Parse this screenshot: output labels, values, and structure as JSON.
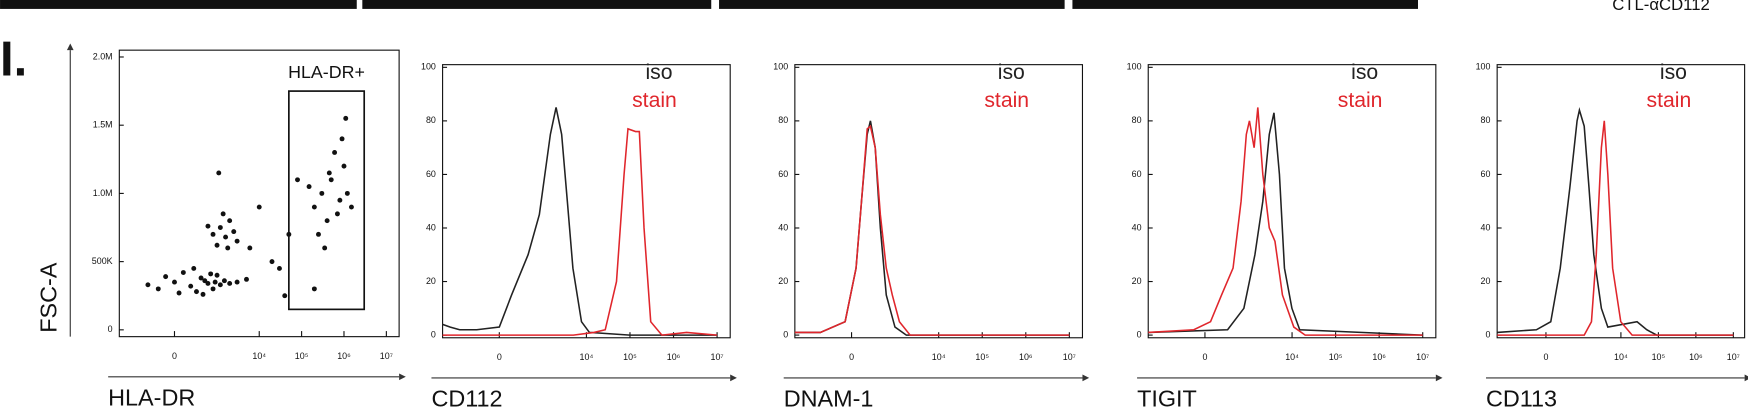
{
  "panel_label": "I.",
  "top_text": "CTL-αCD112",
  "chart_data": [
    {
      "type": "scatter",
      "x_label": "HLA-DR",
      "y_label": "FSC-A",
      "color": "#111111",
      "xlim": [
        -2000,
        20000000
      ],
      "ylim": [
        -50000,
        2050000
      ],
      "xticks": [
        0,
        {
          "value": 10000,
          "label": "10⁴"
        },
        {
          "value": 100000,
          "label": "10⁵"
        },
        {
          "value": 1000000,
          "label": "10⁶"
        },
        {
          "value": 10000000,
          "label": "10⁷"
        }
      ],
      "yticks": [
        0,
        {
          "value": 500000,
          "label": "500K"
        },
        {
          "value": 1000000,
          "label": "1.0M"
        },
        {
          "value": 1500000,
          "label": "1.5M"
        },
        {
          "value": 2000000,
          "label": "2.0M"
        }
      ],
      "gate": {
        "label": "HLA-DR+",
        "x": [
          50000,
          3000000
        ],
        "y": [
          150000,
          1750000
        ]
      },
      "x": [
        -200,
        0,
        200,
        400,
        600,
        800,
        100,
        300,
        500,
        -100,
        700,
        900,
        1200,
        1500,
        2000,
        -400,
        250,
        450,
        50,
        1000,
        3000,
        5000,
        800,
        1200,
        1600,
        2000,
        1000,
        1400,
        2500,
        600,
        1800,
        3000,
        1100,
        200000,
        300000,
        500000,
        800000,
        1000000,
        400000,
        600000,
        150000,
        700000,
        1200000,
        250000,
        900000,
        450000,
        1500000,
        350000,
        1100000,
        20000,
        50000,
        10000,
        30000,
        80000,
        6000,
        40000,
        200000
      ],
      "values": [
        300000,
        350000,
        320000,
        380000,
        340000,
        300000,
        420000,
        280000,
        360000,
        390000,
        410000,
        350000,
        330000,
        360000,
        340000,
        330000,
        450000,
        260000,
        270000,
        400000,
        350000,
        370000,
        700000,
        750000,
        680000,
        800000,
        620000,
        850000,
        720000,
        760000,
        600000,
        650000,
        1150000,
        900000,
        1000000,
        1100000,
        950000,
        1200000,
        800000,
        1300000,
        1050000,
        850000,
        1000000,
        700000,
        1400000,
        1150000,
        900000,
        600000,
        1550000,
        500000,
        700000,
        900000,
        450000,
        1100000,
        600000,
        250000,
        300000
      ]
    },
    {
      "type": "line",
      "x_label": "CD112",
      "xlim": [
        -2000,
        20000000
      ],
      "ylim": [
        -1,
        101
      ],
      "xticks": [
        0,
        {
          "value": 10000,
          "label": "10⁴"
        },
        {
          "value": 100000,
          "label": "10⁵"
        },
        {
          "value": 1000000,
          "label": "10⁶"
        },
        {
          "value": 10000000,
          "label": "10⁷"
        }
      ],
      "yticks": [
        0,
        20,
        40,
        60,
        80,
        100
      ],
      "series": [
        {
          "name": "iso",
          "color": "#222222",
          "x": [
            -2000,
            -1330,
            -800,
            -300,
            0,
            139,
            435,
            820,
            1480,
            2000,
            2700,
            3650,
            4900,
            7700,
            11700,
            100000,
            10000000
          ],
          "values": [
            4,
            3,
            2,
            2,
            3,
            15,
            30,
            45,
            75,
            85,
            75,
            50,
            25,
            5,
            1,
            0,
            0
          ]
        },
        {
          "name": "stain",
          "color": "#e0262c",
          "x": [
            -2000,
            5000,
            15000,
            27000,
            49000,
            73000,
            90000,
            134000,
            164000,
            210000,
            300000,
            540000,
            2000000,
            10000000
          ],
          "values": [
            0,
            0,
            1,
            2,
            20,
            60,
            77,
            76,
            76,
            40,
            5,
            0,
            1,
            0
          ]
        }
      ]
    },
    {
      "type": "line",
      "x_label": "DNAM-1",
      "xlim": [
        -2000,
        20000000
      ],
      "ylim": [
        -1,
        101
      ],
      "xticks": [
        0,
        {
          "value": 10000,
          "label": "10⁴"
        },
        {
          "value": 100000,
          "label": "10⁵"
        },
        {
          "value": 1000000,
          "label": "10⁶"
        },
        {
          "value": 10000000,
          "label": "10⁷"
        }
      ],
      "yticks": [
        0,
        20,
        40,
        60,
        80,
        100
      ],
      "series": [
        {
          "name": "iso",
          "color": "#222222",
          "x": [
            -2000,
            -500,
            -70,
            48,
            110,
            185,
            235,
            320,
            435,
            610,
            980,
            1800,
            10000000
          ],
          "values": [
            1,
            1,
            5,
            25,
            50,
            75,
            80,
            70,
            40,
            15,
            3,
            0,
            0
          ]
        },
        {
          "name": "stain",
          "color": "#e0262c",
          "x": [
            -2000,
            -500,
            -70,
            48,
            110,
            185,
            235,
            320,
            435,
            610,
            850,
            1250,
            2200,
            10000000
          ],
          "values": [
            1,
            1,
            5,
            25,
            50,
            77,
            78,
            70,
            45,
            25,
            15,
            5,
            0,
            0
          ]
        }
      ]
    },
    {
      "type": "line",
      "x_label": "TIGIT",
      "xlim": [
        -2000,
        20000000
      ],
      "ylim": [
        -1,
        101
      ],
      "xticks": [
        0,
        {
          "value": 10000,
          "label": "10⁴"
        },
        {
          "value": 100000,
          "label": "10⁵"
        },
        {
          "value": 1000000,
          "label": "10⁶"
        },
        {
          "value": 10000000,
          "label": "10⁷"
        }
      ],
      "yticks": [
        0,
        20,
        40,
        60,
        80,
        100
      ],
      "series": [
        {
          "name": "iso",
          "color": "#222222",
          "x": [
            -2000,
            300,
            770,
            1400,
            2130,
            3000,
            3850,
            5130,
            6700,
            9900,
            15000,
            10000000
          ],
          "values": [
            1,
            2,
            10,
            30,
            50,
            75,
            83,
            60,
            25,
            10,
            2,
            0
          ]
        },
        {
          "name": "stain",
          "color": "#e0262c",
          "x": [
            -2000,
            -125,
            60,
            200,
            420,
            660,
            880,
            1040,
            1340,
            1630,
            2130,
            3000,
            4040,
            6000,
            11000,
            20000,
            10000000
          ],
          "values": [
            1,
            2,
            5,
            15,
            25,
            50,
            75,
            80,
            70,
            85,
            60,
            40,
            35,
            15,
            3,
            0,
            0
          ]
        }
      ]
    },
    {
      "type": "line",
      "x_label": "CD113",
      "xlim": [
        -2000,
        20000000
      ],
      "ylim": [
        -1,
        101
      ],
      "xticks": [
        0,
        {
          "value": 10000,
          "label": "10⁴"
        },
        {
          "value": 100000,
          "label": "10⁵"
        },
        {
          "value": 1000000,
          "label": "10⁶"
        },
        {
          "value": 10000000,
          "label": "10⁷"
        }
      ],
      "yticks": [
        0,
        20,
        40,
        60,
        80,
        100
      ],
      "series": [
        {
          "name": "iso",
          "color": "#222222",
          "x": [
            -2000,
            -125,
            60,
            200,
            410,
            660,
            770,
            1040,
            1400,
            1880,
            3000,
            4470,
            27000,
            49000,
            90000,
            10000000
          ],
          "values": [
            1,
            2,
            5,
            25,
            55,
            80,
            84,
            78,
            55,
            30,
            10,
            3,
            5,
            2,
            0,
            0
          ]
        },
        {
          "name": "stain",
          "color": "#e0262c",
          "x": [
            -2000,
            1040,
            1630,
            2200,
            3000,
            3600,
            4470,
            6000,
            9900,
            20000,
            10000000
          ],
          "values": [
            0,
            0,
            5,
            30,
            70,
            80,
            60,
            25,
            5,
            0,
            0
          ]
        }
      ]
    }
  ]
}
